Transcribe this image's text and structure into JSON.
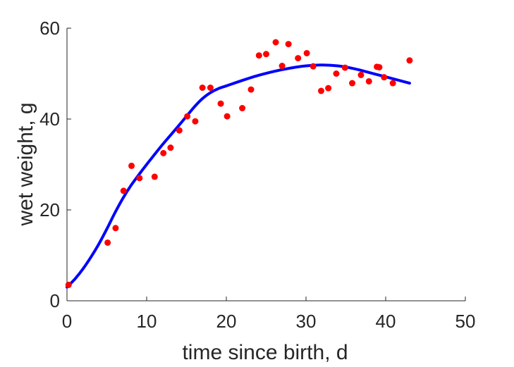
{
  "chart_data": {
    "type": "scatter",
    "title": "",
    "xlabel": "time since birth, d",
    "ylabel": "wet weight, g",
    "xlim": [
      0,
      50
    ],
    "ylim": [
      0,
      60
    ],
    "xticks": [
      0,
      10,
      20,
      30,
      40,
      50
    ],
    "yticks": [
      0,
      20,
      40,
      60
    ],
    "grid": false,
    "series": [
      {
        "kind": "points",
        "color": "#ff0000",
        "x": [
          0.2,
          5.1,
          6.1,
          7.1,
          8.1,
          9.1,
          11.0,
          12.1,
          13.0,
          14.1,
          15.1,
          16.1,
          17.0,
          18.0,
          19.3,
          20.1,
          22.0,
          23.1,
          24.1,
          25.0,
          26.2,
          27.0,
          27.8,
          29.0,
          30.1,
          30.9,
          31.9,
          32.8,
          33.8,
          34.9,
          35.8,
          36.9,
          37.9,
          38.9,
          39.2,
          39.8,
          40.9,
          43.0
        ],
        "y": [
          3.5,
          12.8,
          16.0,
          24.2,
          29.7,
          27.0,
          27.3,
          32.5,
          33.7,
          37.5,
          40.6,
          39.5,
          46.9,
          46.9,
          43.4,
          40.6,
          42.4,
          46.5,
          54.0,
          54.3,
          56.9,
          51.7,
          56.5,
          53.4,
          54.5,
          51.6,
          46.2,
          46.8,
          50.0,
          51.3,
          47.9,
          49.7,
          48.3,
          51.5,
          51.4,
          49.2,
          47.9,
          52.9
        ]
      },
      {
        "kind": "line",
        "color": "#0000ff",
        "x": [
          0,
          1,
          2,
          3,
          4,
          5,
          6,
          7,
          8,
          9,
          10,
          12,
          14,
          16,
          17,
          18,
          19,
          20,
          22,
          24,
          26,
          28,
          30,
          32,
          34,
          36,
          38,
          40,
          43
        ],
        "y": [
          3.0,
          4.8,
          7.0,
          9.6,
          12.5,
          15.8,
          19.3,
          22.5,
          25.3,
          27.7,
          30.0,
          34.4,
          38.5,
          42.7,
          44.5,
          45.8,
          46.7,
          47.3,
          48.5,
          49.6,
          50.5,
          51.2,
          51.7,
          51.9,
          51.7,
          51.1,
          50.2,
          49.3,
          47.9
        ]
      }
    ]
  }
}
